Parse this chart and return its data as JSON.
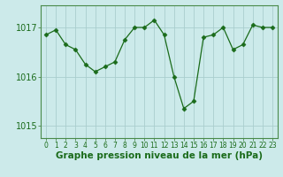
{
  "x": [
    0,
    1,
    2,
    3,
    4,
    5,
    6,
    7,
    8,
    9,
    10,
    11,
    12,
    13,
    14,
    15,
    16,
    17,
    18,
    19,
    20,
    21,
    22,
    23
  ],
  "y": [
    1016.85,
    1016.95,
    1016.65,
    1016.55,
    1016.25,
    1016.1,
    1016.2,
    1016.3,
    1016.75,
    1017.0,
    1017.0,
    1017.15,
    1016.85,
    1016.0,
    1015.35,
    1015.5,
    1016.8,
    1016.85,
    1017.0,
    1016.55,
    1016.65,
    1017.05,
    1017.0,
    1017.0
  ],
  "line_color": "#1a6b1a",
  "marker": "D",
  "marker_size": 2.5,
  "background_color": "#cceaea",
  "grid_color": "#aacece",
  "ylim": [
    1014.75,
    1017.45
  ],
  "yticks": [
    1015,
    1016,
    1017
  ],
  "xlabel": "Graphe pression niveau de la mer (hPa)",
  "xlabel_fontsize": 7.5,
  "ytick_fontsize": 7,
  "xtick_fontsize": 5.5,
  "tick_color": "#1a6b1a",
  "label_color": "#1a6b1a",
  "spine_color": "#4a8a4a"
}
